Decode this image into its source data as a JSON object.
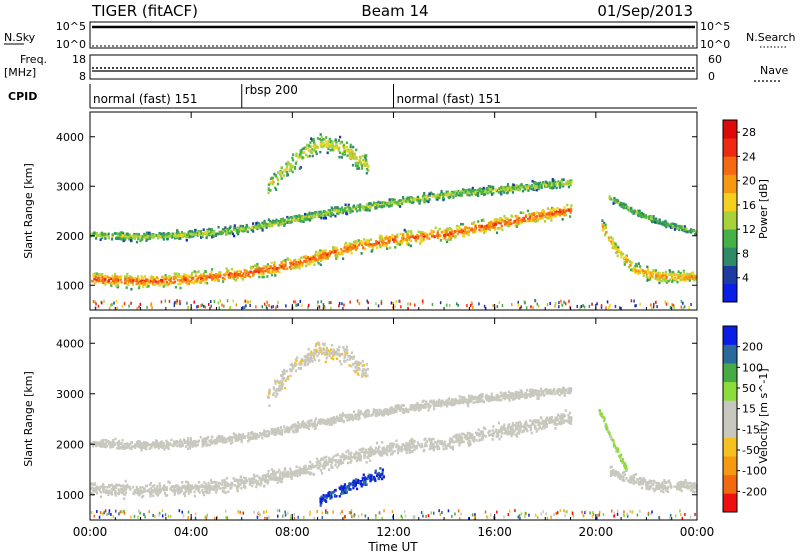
{
  "header": {
    "station": "TIGER (fitACF)",
    "beam": "Beam 14",
    "date": "01/Sep/2013"
  },
  "strips": {
    "nsky": {
      "label": "N.Sky",
      "ticks": [
        "10^5",
        "10^0"
      ]
    },
    "nsearch": {
      "label": "N.Search",
      "ticks": [
        "10^5",
        "10^0"
      ]
    },
    "freq": {
      "label": "Freq.",
      "unit": "[MHz]",
      "ticks": [
        "18",
        "8"
      ]
    },
    "nave": {
      "label": "Nave",
      "ticks": [
        "60",
        "0"
      ]
    },
    "cpid": {
      "label": "CPID",
      "segments": [
        {
          "text": "normal (fast) 151",
          "start": 0,
          "end": 6
        },
        {
          "text": "rbsp 200",
          "start": 6,
          "end": 12
        },
        {
          "text": "normal (fast) 151",
          "start": 12,
          "end": 24
        }
      ]
    }
  },
  "colors": {
    "power": [
      "#0a1ee6",
      "#1e3ca0",
      "#2f8a66",
      "#45b045",
      "#a8d23c",
      "#f5d020",
      "#f59a10",
      "#f56a10",
      "#ee2a10",
      "#dc0a0a"
    ],
    "velocity": [
      "#ee1010",
      "#f26a10",
      "#f59a10",
      "#f5c020",
      "#c8c8be",
      "#c8c8be",
      "#8cdc3c",
      "#46aa46",
      "#2a6a9a",
      "#0a1ee6"
    ]
  },
  "chart_data": [
    {
      "type": "heatmap",
      "name": "Power",
      "xlabel": "",
      "ylabel": "Slant Range [km]",
      "xlim": [
        0,
        24
      ],
      "ylim": [
        500,
        4500
      ],
      "yticks": [
        "1000",
        "2000",
        "3000",
        "4000"
      ],
      "colorbar": {
        "label": "Power [dB]",
        "ticks": [
          "4",
          "8",
          "12",
          "16",
          "20",
          "24",
          "28"
        ],
        "range": [
          0,
          30
        ]
      },
      "bands": [
        {
          "name": "main echo",
          "x": [
            0,
            2,
            4,
            6,
            8,
            10,
            12,
            14,
            16,
            18,
            19
          ],
          "y": [
            1150,
            1100,
            1150,
            1250,
            1450,
            1750,
            1950,
            2050,
            2250,
            2450,
            2550
          ],
          "width": 190,
          "value": 24
        },
        {
          "name": "upper echo",
          "x": [
            0,
            2,
            4,
            6,
            8,
            10,
            12,
            14,
            16,
            18,
            19
          ],
          "y": [
            2050,
            2000,
            2050,
            2150,
            2350,
            2550,
            2700,
            2850,
            2950,
            3050,
            3100
          ],
          "width": 120,
          "value": 14
        },
        {
          "name": "high echo",
          "x": [
            7,
            8,
            9,
            10,
            11
          ],
          "y": [
            3000,
            3500,
            3900,
            3800,
            3400
          ],
          "width": 260,
          "value": 16
        },
        {
          "name": "late echo",
          "x": [
            20.2,
            20.8,
            21.5,
            22.5,
            23.5,
            24
          ],
          "y": [
            2250,
            1700,
            1350,
            1200,
            1200,
            1200
          ],
          "width": 170,
          "value": 20
        },
        {
          "name": "late upper echo",
          "x": [
            20.5,
            21.5,
            22.5,
            23.5,
            24
          ],
          "y": [
            2800,
            2500,
            2300,
            2150,
            2100
          ],
          "width": 90,
          "value": 12
        }
      ]
    },
    {
      "type": "heatmap",
      "name": "Velocity",
      "xlabel": "Time UT",
      "ylabel": "Slant Range [km]",
      "xlim": [
        0,
        24
      ],
      "ylim": [
        500,
        4500
      ],
      "xticks": [
        "00:00",
        "04:00",
        "08:00",
        "12:00",
        "16:00",
        "20:00",
        "00:00"
      ],
      "yticks": [
        "1000",
        "2000",
        "3000",
        "4000"
      ],
      "colorbar": {
        "label": "Velocity [m s^-1]",
        "ticks": [
          "-200",
          "-100",
          "-50",
          "-15",
          "15",
          "50",
          "100",
          "200"
        ],
        "range": [
          -250,
          250
        ]
      },
      "bands": [
        {
          "name": "main echo",
          "x": [
            0,
            2,
            4,
            6,
            8,
            10,
            12,
            14,
            16,
            18,
            19
          ],
          "y": [
            1150,
            1100,
            1150,
            1250,
            1450,
            1750,
            1950,
            2050,
            2250,
            2450,
            2550
          ],
          "width": 190,
          "value": 0
        },
        {
          "name": "upper echo",
          "x": [
            0,
            2,
            4,
            6,
            8,
            10,
            12,
            14,
            16,
            18,
            19
          ],
          "y": [
            2050,
            2000,
            2050,
            2150,
            2350,
            2550,
            2700,
            2850,
            2950,
            3050,
            3100
          ],
          "width": 120,
          "value": -30
        },
        {
          "name": "high echo",
          "x": [
            7,
            8,
            9,
            10,
            11
          ],
          "y": [
            3000,
            3500,
            3900,
            3800,
            3400
          ],
          "width": 260,
          "value": -40
        },
        {
          "name": "blue patch",
          "x": [
            9,
            9.6,
            10.3,
            11,
            11.6
          ],
          "y": [
            900,
            1050,
            1200,
            1350,
            1450
          ],
          "width": 160,
          "value": 200
        },
        {
          "name": "green streak",
          "x": [
            20.1,
            20.6,
            21.2
          ],
          "y": [
            2700,
            2100,
            1500
          ],
          "width": 90,
          "value": 60
        },
        {
          "name": "late echo",
          "x": [
            20.5,
            21.5,
            22.5,
            23.5,
            24
          ],
          "y": [
            1500,
            1300,
            1200,
            1200,
            1200
          ],
          "width": 160,
          "value": 0
        }
      ]
    }
  ]
}
